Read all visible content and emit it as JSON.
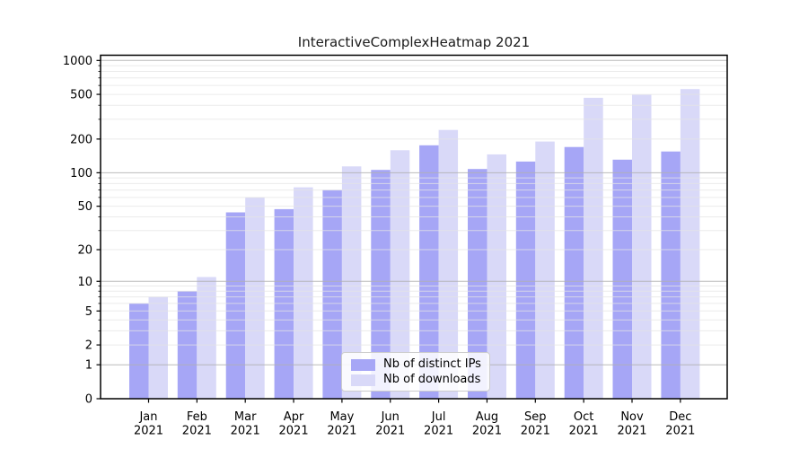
{
  "title": "InteractiveComplexHeatmap 2021",
  "chart_data": {
    "type": "bar",
    "title": "InteractiveComplexHeatmap 2021",
    "x_tick_months": [
      "Jan",
      "Feb",
      "Mar",
      "Apr",
      "May",
      "Jun",
      "Jul",
      "Aug",
      "Sep",
      "Oct",
      "Nov",
      "Dec"
    ],
    "x_tick_year": "2021",
    "series": [
      {
        "name": "Nb of distinct IPs",
        "color": "#a6a6f6",
        "values": [
          6,
          8,
          44,
          47,
          70,
          106,
          176,
          108,
          126,
          170,
          131,
          155
        ]
      },
      {
        "name": "Nb of downloads",
        "color": "#d9d9f8",
        "values": [
          7,
          11,
          60,
          74,
          114,
          159,
          241,
          146,
          190,
          466,
          496,
          557
        ]
      }
    ],
    "y_scale": "log10(1+x)",
    "y_ticks": [
      1000,
      500,
      200,
      100,
      50,
      20,
      10,
      5,
      2,
      1,
      0
    ],
    "y_major_gridlines": [
      1,
      10,
      100,
      1000
    ],
    "y_minor_gridlines": [
      2,
      3,
      4,
      5,
      6,
      7,
      8,
      9,
      20,
      30,
      40,
      50,
      60,
      70,
      80,
      90,
      200,
      300,
      400,
      500,
      600,
      700,
      800,
      900
    ],
    "ylim": [
      0,
      1113
    ],
    "grid": true,
    "legend_position": "lower center"
  },
  "colors": {
    "bar_dark": "#a6a6f6",
    "bar_light": "#d9d9f8",
    "grid_major": "#b0b0b0",
    "grid_minor": "#e4e4e4",
    "axis": "#000000",
    "background": "#ffffff"
  }
}
